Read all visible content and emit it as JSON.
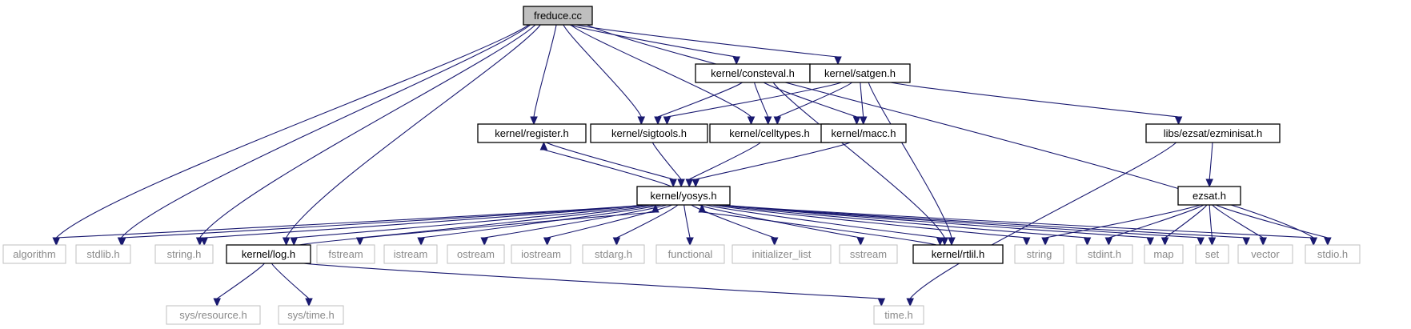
{
  "colors": {
    "edge": "#191970",
    "root_fill": "#bfbfbf",
    "local_border": "#000000",
    "system_border": "#bfbfbf",
    "system_text": "#8a8a8a"
  },
  "nodes": [
    {
      "id": "freduce",
      "label": "freduce.cc",
      "kind": "root"
    },
    {
      "id": "consteval",
      "label": "kernel/consteval.h",
      "kind": "local"
    },
    {
      "id": "satgen",
      "label": "kernel/satgen.h",
      "kind": "local"
    },
    {
      "id": "register",
      "label": "kernel/register.h",
      "kind": "local"
    },
    {
      "id": "sigtools",
      "label": "kernel/sigtools.h",
      "kind": "local"
    },
    {
      "id": "celltypes",
      "label": "kernel/celltypes.h",
      "kind": "local"
    },
    {
      "id": "macc",
      "label": "kernel/macc.h",
      "kind": "local"
    },
    {
      "id": "ezminisat",
      "label": "libs/ezsat/ezminisat.h",
      "kind": "local"
    },
    {
      "id": "yosys",
      "label": "kernel/yosys.h",
      "kind": "local"
    },
    {
      "id": "ezsat",
      "label": "ezsat.h",
      "kind": "local"
    },
    {
      "id": "algorithm",
      "label": "algorithm",
      "kind": "system"
    },
    {
      "id": "stdlib",
      "label": "stdlib.h",
      "kind": "system"
    },
    {
      "id": "stringh",
      "label": "string.h",
      "kind": "system"
    },
    {
      "id": "log",
      "label": "kernel/log.h",
      "kind": "local"
    },
    {
      "id": "fstream",
      "label": "fstream",
      "kind": "system"
    },
    {
      "id": "istream",
      "label": "istream",
      "kind": "system"
    },
    {
      "id": "ostream",
      "label": "ostream",
      "kind": "system"
    },
    {
      "id": "iostream",
      "label": "iostream",
      "kind": "system"
    },
    {
      "id": "stdarg",
      "label": "stdarg.h",
      "kind": "system"
    },
    {
      "id": "functional",
      "label": "functional",
      "kind": "system"
    },
    {
      "id": "initlist",
      "label": "initializer_list",
      "kind": "system"
    },
    {
      "id": "sstream",
      "label": "sstream",
      "kind": "system"
    },
    {
      "id": "rtlil",
      "label": "kernel/rtlil.h",
      "kind": "local"
    },
    {
      "id": "string",
      "label": "string",
      "kind": "system"
    },
    {
      "id": "stdint",
      "label": "stdint.h",
      "kind": "system"
    },
    {
      "id": "map",
      "label": "map",
      "kind": "system"
    },
    {
      "id": "set",
      "label": "set",
      "kind": "system"
    },
    {
      "id": "vector",
      "label": "vector",
      "kind": "system"
    },
    {
      "id": "stdio",
      "label": "stdio.h",
      "kind": "system"
    },
    {
      "id": "resource",
      "label": "sys/resource.h",
      "kind": "system"
    },
    {
      "id": "systime",
      "label": "sys/time.h",
      "kind": "system"
    },
    {
      "id": "time",
      "label": "time.h",
      "kind": "system"
    }
  ],
  "edges": [
    [
      "freduce",
      "consteval"
    ],
    [
      "freduce",
      "satgen"
    ],
    [
      "freduce",
      "register"
    ],
    [
      "freduce",
      "sigtools"
    ],
    [
      "freduce",
      "celltypes"
    ],
    [
      "freduce",
      "algorithm"
    ],
    [
      "freduce",
      "stdlib"
    ],
    [
      "freduce",
      "stringh"
    ],
    [
      "freduce",
      "log"
    ],
    [
      "freduce",
      "stdio"
    ],
    [
      "consteval",
      "sigtools"
    ],
    [
      "consteval",
      "celltypes"
    ],
    [
      "consteval",
      "macc"
    ],
    [
      "consteval",
      "rtlil"
    ],
    [
      "satgen",
      "sigtools"
    ],
    [
      "satgen",
      "celltypes"
    ],
    [
      "satgen",
      "macc"
    ],
    [
      "satgen",
      "rtlil"
    ],
    [
      "satgen",
      "ezminisat"
    ],
    [
      "register",
      "yosys"
    ],
    [
      "sigtools",
      "yosys"
    ],
    [
      "celltypes",
      "yosys"
    ],
    [
      "macc",
      "yosys"
    ],
    [
      "ezminisat",
      "ezsat"
    ],
    [
      "ezminisat",
      "time"
    ],
    [
      "yosys",
      "register"
    ],
    [
      "yosys",
      "algorithm"
    ],
    [
      "yosys",
      "stdlib"
    ],
    [
      "yosys",
      "stringh"
    ],
    [
      "yosys",
      "log"
    ],
    [
      "yosys",
      "fstream"
    ],
    [
      "yosys",
      "istream"
    ],
    [
      "yosys",
      "ostream"
    ],
    [
      "yosys",
      "iostream"
    ],
    [
      "yosys",
      "stdarg"
    ],
    [
      "yosys",
      "functional"
    ],
    [
      "yosys",
      "initlist"
    ],
    [
      "yosys",
      "sstream"
    ],
    [
      "yosys",
      "rtlil"
    ],
    [
      "yosys",
      "string"
    ],
    [
      "yosys",
      "stdint"
    ],
    [
      "yosys",
      "map"
    ],
    [
      "yosys",
      "set"
    ],
    [
      "yosys",
      "vector"
    ],
    [
      "yosys",
      "stdio"
    ],
    [
      "ezsat",
      "string"
    ],
    [
      "ezsat",
      "stdint"
    ],
    [
      "ezsat",
      "map"
    ],
    [
      "ezsat",
      "set"
    ],
    [
      "ezsat",
      "vector"
    ],
    [
      "ezsat",
      "stdio"
    ],
    [
      "log",
      "yosys"
    ],
    [
      "log",
      "resource"
    ],
    [
      "log",
      "systime"
    ],
    [
      "log",
      "time"
    ],
    [
      "rtlil",
      "yosys"
    ]
  ]
}
